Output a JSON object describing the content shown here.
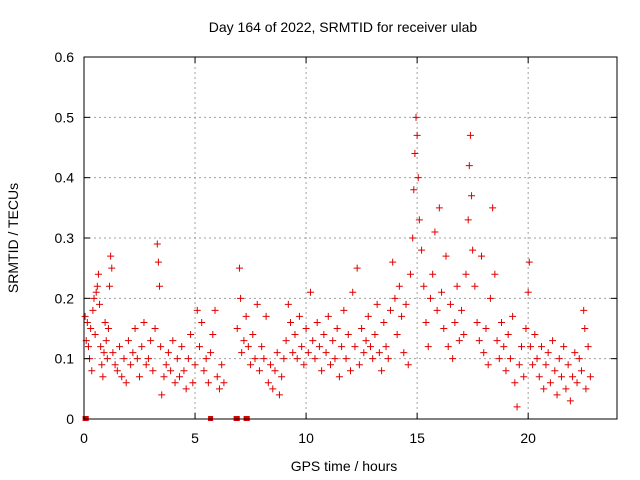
{
  "chart_data": {
    "type": "scatter",
    "title": "Day 164 of 2022, SRMTID for receiver ulab",
    "xlabel": "GPS time / hours",
    "ylabel": "SRMTID / TECUs",
    "xlim": [
      0,
      24
    ],
    "ylim": [
      0,
      0.6
    ],
    "xticks": [
      0,
      5,
      10,
      15,
      20
    ],
    "xtick_labels": [
      "0",
      "5",
      "10",
      "15",
      "20"
    ],
    "yticks": [
      0,
      0.1,
      0.2,
      0.3,
      0.4,
      0.5,
      0.6
    ],
    "ytick_labels": [
      "0",
      "0.1",
      "0.2",
      "0.3",
      "0.4",
      "0.5",
      "0.6"
    ],
    "grid": true,
    "marker": "+",
    "color": "#e00000",
    "series": [
      {
        "name": "SRMTID",
        "points": [
          [
            0.05,
            0.17
          ],
          [
            0.1,
            0.13
          ],
          [
            0.15,
            0.16
          ],
          [
            0.2,
            0.12
          ],
          [
            0.25,
            0.1
          ],
          [
            0.3,
            0.15
          ],
          [
            0.35,
            0.08
          ],
          [
            0.4,
            0.18
          ],
          [
            0.45,
            0.2
          ],
          [
            0.5,
            0.14
          ],
          [
            0.55,
            0.21
          ],
          [
            0.6,
            0.22
          ],
          [
            0.65,
            0.24
          ],
          [
            0.7,
            0.19
          ],
          [
            0.75,
            0.12
          ],
          [
            0.8,
            0.09
          ],
          [
            0.85,
            0.07
          ],
          [
            0.9,
            0.11
          ],
          [
            0.95,
            0.16
          ],
          [
            1.0,
            0.13
          ],
          [
            1.05,
            0.1
          ],
          [
            1.1,
            0.15
          ],
          [
            1.15,
            0.22
          ],
          [
            1.2,
            0.27
          ],
          [
            1.25,
            0.25
          ],
          [
            1.3,
            0.11
          ],
          [
            1.4,
            0.09
          ],
          [
            1.5,
            0.08
          ],
          [
            1.6,
            0.12
          ],
          [
            1.7,
            0.07
          ],
          [
            1.8,
            0.1
          ],
          [
            1.9,
            0.06
          ],
          [
            2.0,
            0.13
          ],
          [
            2.1,
            0.09
          ],
          [
            2.2,
            0.11
          ],
          [
            2.3,
            0.15
          ],
          [
            2.4,
            0.1
          ],
          [
            2.5,
            0.07
          ],
          [
            2.6,
            0.12
          ],
          [
            2.7,
            0.16
          ],
          [
            2.8,
            0.09
          ],
          [
            2.9,
            0.1
          ],
          [
            3.0,
            0.13
          ],
          [
            3.1,
            0.08
          ],
          [
            3.2,
            0.15
          ],
          [
            3.3,
            0.29
          ],
          [
            3.35,
            0.26
          ],
          [
            3.4,
            0.22
          ],
          [
            3.45,
            0.12
          ],
          [
            3.5,
            0.04
          ],
          [
            3.6,
            0.07
          ],
          [
            3.7,
            0.09
          ],
          [
            3.8,
            0.11
          ],
          [
            3.9,
            0.08
          ],
          [
            4.0,
            0.13
          ],
          [
            4.1,
            0.06
          ],
          [
            4.2,
            0.1
          ],
          [
            4.3,
            0.07
          ],
          [
            4.4,
            0.12
          ],
          [
            4.5,
            0.08
          ],
          [
            4.6,
            0.05
          ],
          [
            4.7,
            0.1
          ],
          [
            4.8,
            0.14
          ],
          [
            4.9,
            0.06
          ],
          [
            5.0,
            0.09
          ],
          [
            5.1,
            0.18
          ],
          [
            5.2,
            0.12
          ],
          [
            5.3,
            0.16
          ],
          [
            5.4,
            0.08
          ],
          [
            5.5,
            0.1
          ],
          [
            5.6,
            0.06
          ],
          [
            5.7,
            0.11
          ],
          [
            5.8,
            0.14
          ],
          [
            5.9,
            0.18
          ],
          [
            6.0,
            0.07
          ],
          [
            6.1,
            0.05
          ],
          [
            6.2,
            0.09
          ],
          [
            6.3,
            0.06
          ],
          [
            6.9,
            0.15
          ],
          [
            7.0,
            0.25
          ],
          [
            7.05,
            0.2
          ],
          [
            7.1,
            0.11
          ],
          [
            7.2,
            0.13
          ],
          [
            7.3,
            0.17
          ],
          [
            7.4,
            0.12
          ],
          [
            7.5,
            0.09
          ],
          [
            7.6,
            0.14
          ],
          [
            7.7,
            0.1
          ],
          [
            7.8,
            0.19
          ],
          [
            7.9,
            0.08
          ],
          [
            8.0,
            0.12
          ],
          [
            8.1,
            0.1
          ],
          [
            8.2,
            0.17
          ],
          [
            8.3,
            0.06
          ],
          [
            8.4,
            0.09
          ],
          [
            8.5,
            0.05
          ],
          [
            8.6,
            0.08
          ],
          [
            8.7,
            0.11
          ],
          [
            8.8,
            0.04
          ],
          [
            8.9,
            0.07
          ],
          [
            9.0,
            0.1
          ],
          [
            9.1,
            0.13
          ],
          [
            9.2,
            0.19
          ],
          [
            9.3,
            0.16
          ],
          [
            9.4,
            0.11
          ],
          [
            9.5,
            0.14
          ],
          [
            9.6,
            0.1
          ],
          [
            9.7,
            0.17
          ],
          [
            9.8,
            0.12
          ],
          [
            9.9,
            0.09
          ],
          [
            10.0,
            0.15
          ],
          [
            10.1,
            0.11
          ],
          [
            10.2,
            0.21
          ],
          [
            10.3,
            0.13
          ],
          [
            10.4,
            0.1
          ],
          [
            10.5,
            0.16
          ],
          [
            10.6,
            0.12
          ],
          [
            10.7,
            0.08
          ],
          [
            10.8,
            0.14
          ],
          [
            10.9,
            0.11
          ],
          [
            11.0,
            0.17
          ],
          [
            11.1,
            0.09
          ],
          [
            11.2,
            0.13
          ],
          [
            11.3,
            0.1
          ],
          [
            11.4,
            0.15
          ],
          [
            11.5,
            0.07
          ],
          [
            11.6,
            0.12
          ],
          [
            11.7,
            0.18
          ],
          [
            11.8,
            0.1
          ],
          [
            11.9,
            0.14
          ],
          [
            12.0,
            0.08
          ],
          [
            12.1,
            0.21
          ],
          [
            12.2,
            0.12
          ],
          [
            12.3,
            0.25
          ],
          [
            12.4,
            0.09
          ],
          [
            12.5,
            0.15
          ],
          [
            12.6,
            0.11
          ],
          [
            12.7,
            0.13
          ],
          [
            12.8,
            0.17
          ],
          [
            12.9,
            0.12
          ],
          [
            13.0,
            0.1
          ],
          [
            13.1,
            0.14
          ],
          [
            13.2,
            0.19
          ],
          [
            13.3,
            0.11
          ],
          [
            13.4,
            0.08
          ],
          [
            13.5,
            0.16
          ],
          [
            13.6,
            0.12
          ],
          [
            13.7,
            0.1
          ],
          [
            13.8,
            0.18
          ],
          [
            13.9,
            0.26
          ],
          [
            14.0,
            0.2
          ],
          [
            14.1,
            0.14
          ],
          [
            14.2,
            0.22
          ],
          [
            14.3,
            0.17
          ],
          [
            14.4,
            0.11
          ],
          [
            14.5,
            0.19
          ],
          [
            14.6,
            0.09
          ],
          [
            14.7,
            0.24
          ],
          [
            14.8,
            0.3
          ],
          [
            14.85,
            0.38
          ],
          [
            14.9,
            0.44
          ],
          [
            14.95,
            0.5
          ],
          [
            15.0,
            0.47
          ],
          [
            15.05,
            0.4
          ],
          [
            15.1,
            0.33
          ],
          [
            15.2,
            0.28
          ],
          [
            15.3,
            0.22
          ],
          [
            15.4,
            0.16
          ],
          [
            15.5,
            0.12
          ],
          [
            15.6,
            0.2
          ],
          [
            15.7,
            0.24
          ],
          [
            15.8,
            0.31
          ],
          [
            15.9,
            0.18
          ],
          [
            16.0,
            0.35
          ],
          [
            16.1,
            0.21
          ],
          [
            16.2,
            0.15
          ],
          [
            16.3,
            0.27
          ],
          [
            16.4,
            0.12
          ],
          [
            16.5,
            0.19
          ],
          [
            16.6,
            0.1
          ],
          [
            16.7,
            0.16
          ],
          [
            16.8,
            0.22
          ],
          [
            16.9,
            0.13
          ],
          [
            17.0,
            0.18
          ],
          [
            17.1,
            0.14
          ],
          [
            17.2,
            0.24
          ],
          [
            17.3,
            0.33
          ],
          [
            17.35,
            0.42
          ],
          [
            17.4,
            0.47
          ],
          [
            17.45,
            0.37
          ],
          [
            17.5,
            0.28
          ],
          [
            17.6,
            0.22
          ],
          [
            17.7,
            0.16
          ],
          [
            17.8,
            0.13
          ],
          [
            17.9,
            0.27
          ],
          [
            18.0,
            0.11
          ],
          [
            18.1,
            0.15
          ],
          [
            18.2,
            0.09
          ],
          [
            18.3,
            0.2
          ],
          [
            18.4,
            0.35
          ],
          [
            18.5,
            0.24
          ],
          [
            18.6,
            0.13
          ],
          [
            18.7,
            0.1
          ],
          [
            18.8,
            0.16
          ],
          [
            18.9,
            0.12
          ],
          [
            19.0,
            0.08
          ],
          [
            19.1,
            0.14
          ],
          [
            19.2,
            0.1
          ],
          [
            19.3,
            0.17
          ],
          [
            19.4,
            0.06
          ],
          [
            19.5,
            0.02
          ],
          [
            19.6,
            0.09
          ],
          [
            19.7,
            0.12
          ],
          [
            19.8,
            0.07
          ],
          [
            19.9,
            0.15
          ],
          [
            20.0,
            0.21
          ],
          [
            20.05,
            0.26
          ],
          [
            20.1,
            0.12
          ],
          [
            20.2,
            0.09
          ],
          [
            20.3,
            0.14
          ],
          [
            20.4,
            0.1
          ],
          [
            20.5,
            0.07
          ],
          [
            20.6,
            0.12
          ],
          [
            20.7,
            0.05
          ],
          [
            20.8,
            0.09
          ],
          [
            20.9,
            0.11
          ],
          [
            21.0,
            0.06
          ],
          [
            21.1,
            0.13
          ],
          [
            21.2,
            0.08
          ],
          [
            21.3,
            0.04
          ],
          [
            21.4,
            0.1
          ],
          [
            21.5,
            0.07
          ],
          [
            21.6,
            0.12
          ],
          [
            21.7,
            0.05
          ],
          [
            21.8,
            0.09
          ],
          [
            21.9,
            0.03
          ],
          [
            22.0,
            0.07
          ],
          [
            22.1,
            0.11
          ],
          [
            22.2,
            0.06
          ],
          [
            22.3,
            0.1
          ],
          [
            22.4,
            0.08
          ],
          [
            22.5,
            0.18
          ],
          [
            22.55,
            0.15
          ],
          [
            22.6,
            0.05
          ],
          [
            22.7,
            0.12
          ],
          [
            22.8,
            0.07
          ]
        ],
        "zero_points": [
          0.05,
          0.1,
          5.7,
          6.85,
          6.9,
          7.3,
          7.35
        ]
      }
    ]
  }
}
